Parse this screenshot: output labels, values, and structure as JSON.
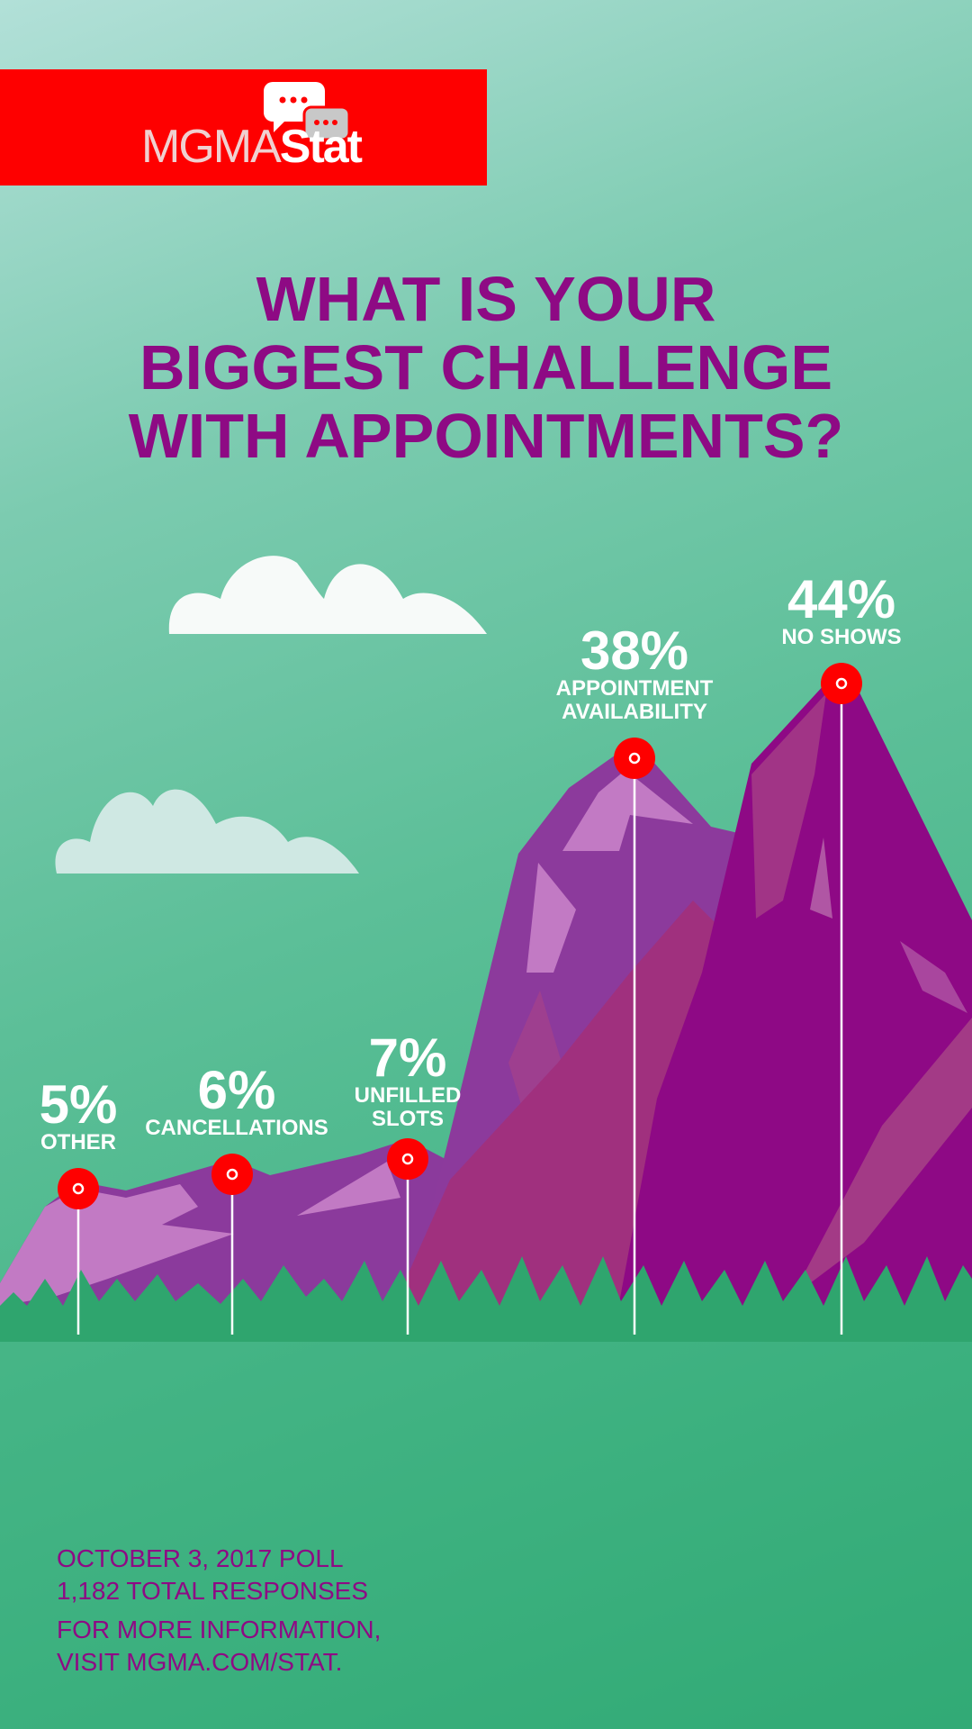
{
  "logo": {
    "text_light": "MGMA",
    "text_bold": "Stat",
    "icon": "chat-bubbles-icon",
    "bar_color": "#fe0000"
  },
  "title": {
    "line1": "WHAT IS YOUR",
    "line2": "BIGGEST CHALLENGE",
    "line3": "WITH APPOINTMENTS?"
  },
  "chart_data": {
    "type": "bar",
    "title": "WHAT IS YOUR BIGGEST CHALLENGE WITH APPOINTMENTS?",
    "categories": [
      "OTHER",
      "CANCELLATIONS",
      "UNFILLED SLOTS",
      "APPOINTMENT AVAILABILITY",
      "NO SHOWS"
    ],
    "values": [
      5,
      6,
      7,
      38,
      44
    ],
    "labels": [
      {
        "pct": "5%",
        "line1": "OTHER",
        "line2": ""
      },
      {
        "pct": "6%",
        "line1": "CANCELLATIONS",
        "line2": ""
      },
      {
        "pct": "7%",
        "line1": "UNFILLED",
        "line2": "SLOTS"
      },
      {
        "pct": "38%",
        "line1": "APPOINTMENT",
        "line2": "AVAILABILITY"
      },
      {
        "pct": "44%",
        "line1": "NO SHOWS",
        "line2": ""
      }
    ],
    "colors": {
      "title": "#8e0a84",
      "pin": "#fe0000",
      "mountain": "#8e0a85"
    }
  },
  "footer": {
    "line1": "OCTOBER 3, 2017 POLL",
    "line2": "1,182 TOTAL RESPONSES",
    "line3": "FOR MORE INFORMATION,",
    "line4": "VISIT MGMA.COM/STAT."
  }
}
